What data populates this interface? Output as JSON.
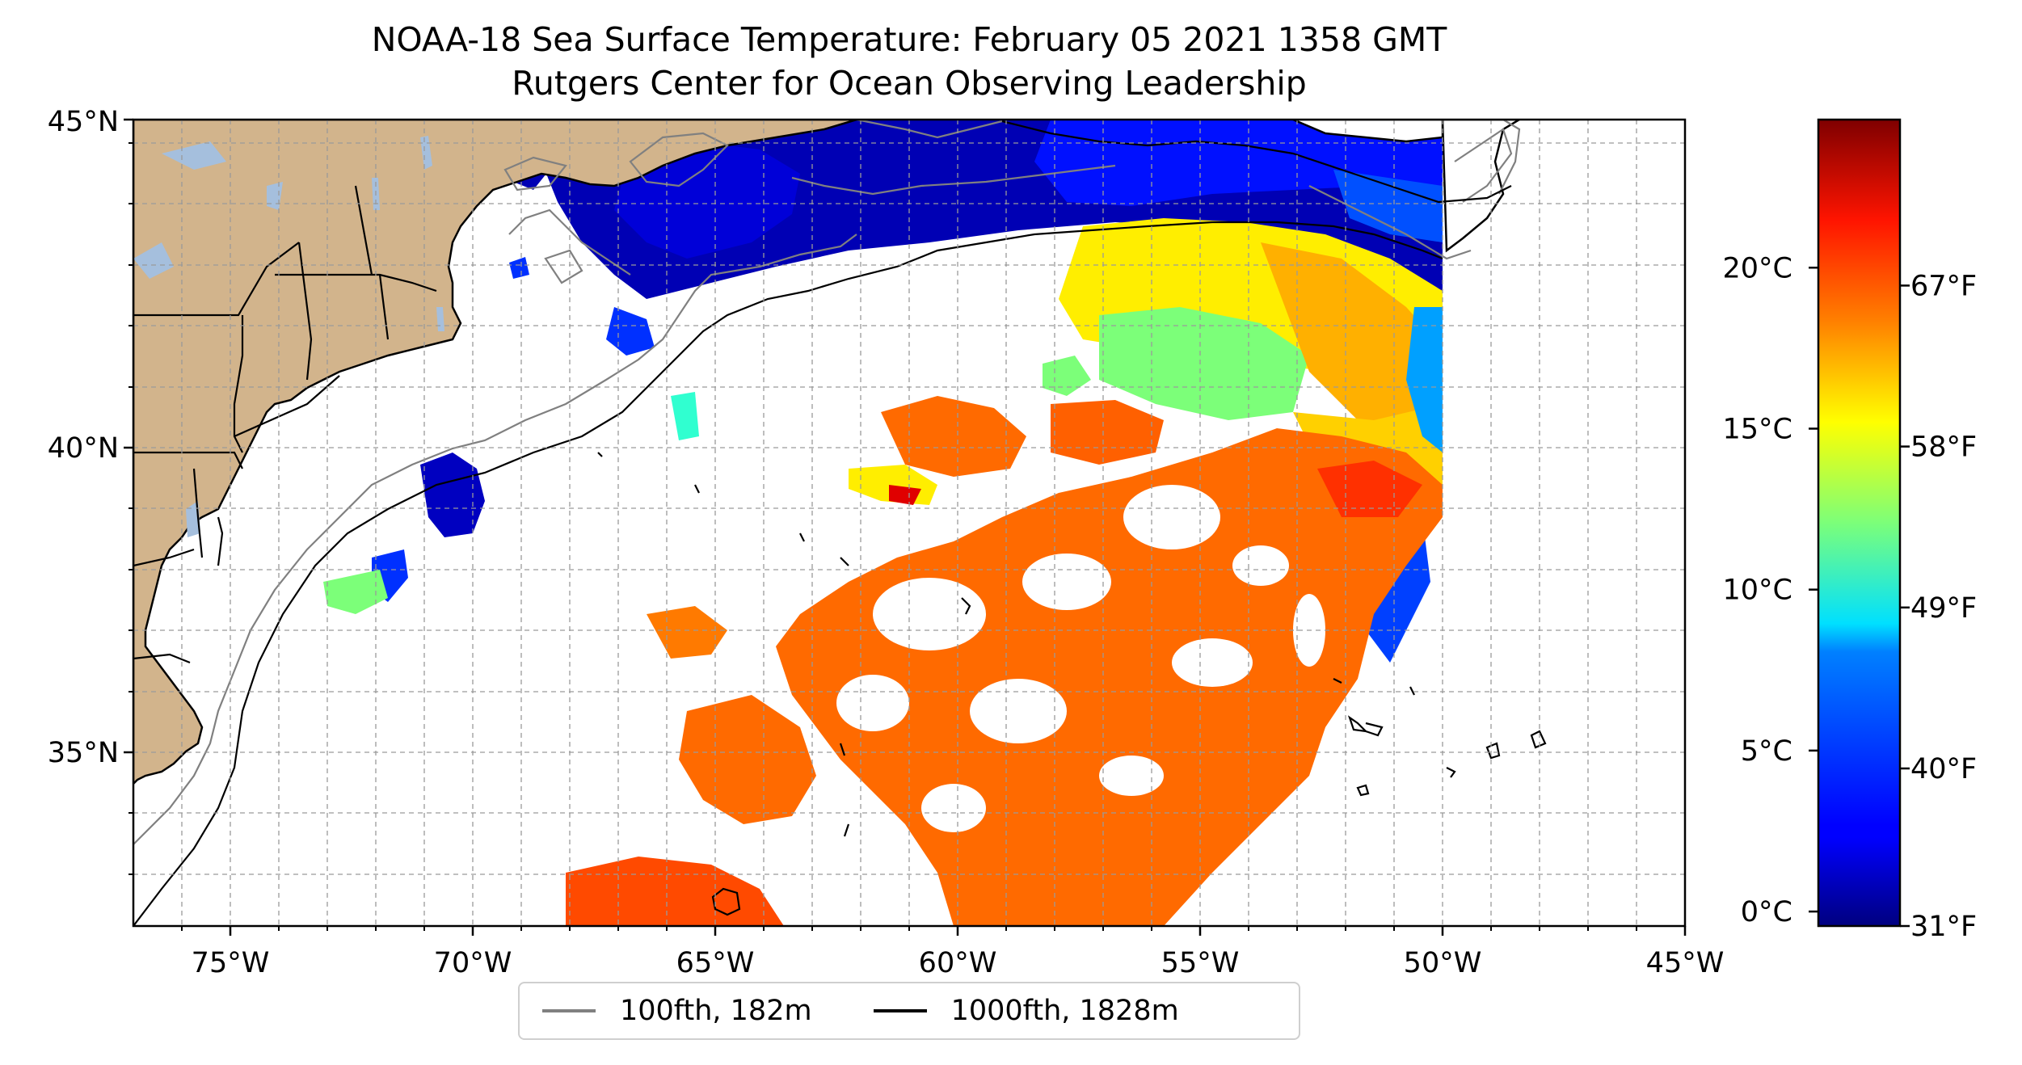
{
  "title": {
    "line1": "NOAA-18 Sea Surface Temperature: February 05 2021 1358 GMT",
    "line2": "Rutgers Center for Ocean Observing Leadership"
  },
  "map": {
    "lon_range": [
      -77,
      -45
    ],
    "lat_range": [
      32.3,
      45
    ],
    "lon_ticks": [
      "75°W",
      "70°W",
      "65°W",
      "60°W",
      "55°W",
      "50°W",
      "45°W"
    ],
    "lat_ticks": [
      "35°N",
      "40°N",
      "45°N"
    ],
    "land_color": "#d2b48c",
    "lake_color": "#a5bfdd",
    "grid": "dashed"
  },
  "colorbar": {
    "colormap": "jet",
    "celsius_ticks": [
      "0°C",
      "5°C",
      "10°C",
      "15°C",
      "20°C"
    ],
    "fahrenheit_ticks": [
      "31°F",
      "40°F",
      "49°F",
      "58°F",
      "67°F"
    ],
    "celsius_values": [
      0,
      5,
      10,
      15,
      20
    ],
    "fahrenheit_values": [
      31,
      40,
      49,
      58,
      67
    ]
  },
  "legend": {
    "items": [
      {
        "label": "100fth, 182m",
        "color": "#808080"
      },
      {
        "label": "1000fth, 1828m",
        "color": "#000000"
      }
    ]
  }
}
